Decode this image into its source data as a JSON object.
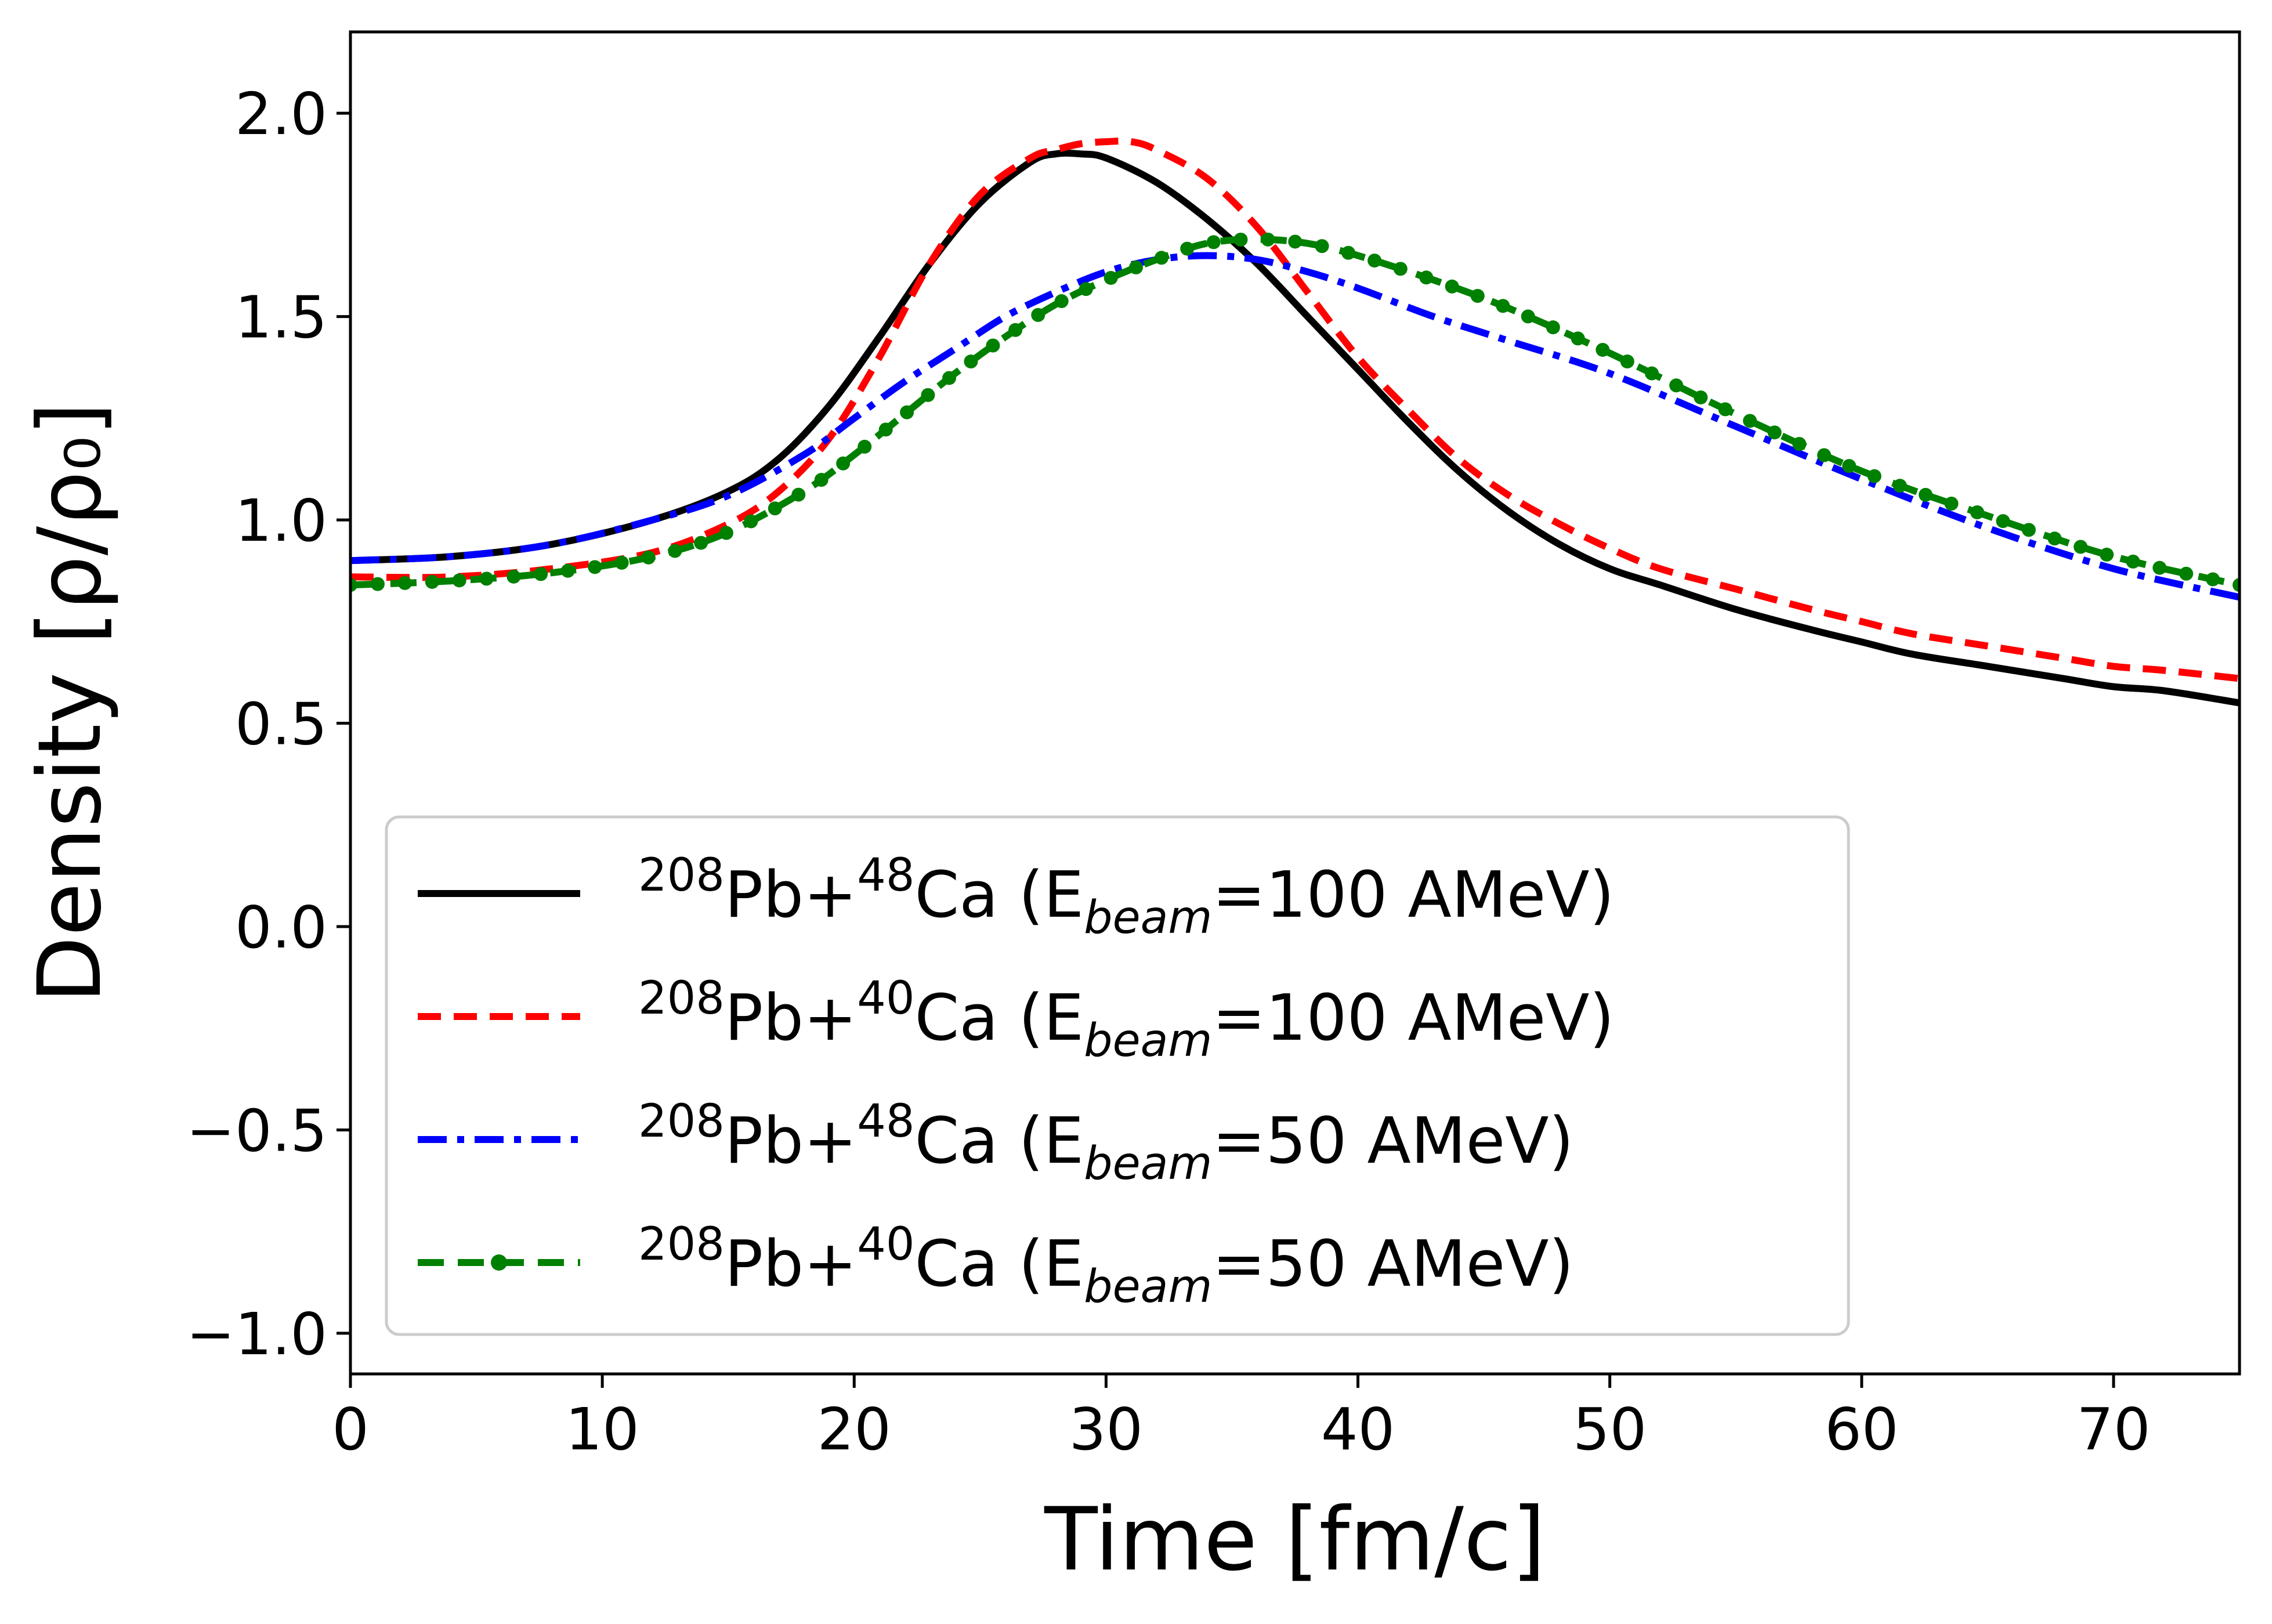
{
  "chart_data": {
    "type": "line",
    "xlabel": "Time [fm/c]",
    "ylabel": "Density [ρ/ρ₀]",
    "xlim": [
      0,
      75
    ],
    "ylim": [
      -1.1,
      2.2
    ],
    "xticks": [
      "0",
      "10",
      "20",
      "30",
      "40",
      "50",
      "60",
      "70"
    ],
    "yticks": [
      "−1.0",
      "−0.5",
      "0.0",
      "0.5",
      "1.0",
      "1.5",
      "2.0"
    ],
    "grid": false,
    "legend_position": "lower-left",
    "series": [
      {
        "legend": {
          "pre": "208",
          "mid": "Pb+",
          "sup2": "48",
          "post": "Ca (E",
          "sub": "beam",
          "end": "=100 AMeV)"
        },
        "color": "#000000",
        "style": "solid",
        "x": [
          0,
          4,
          8,
          12,
          15,
          17,
          19,
          21,
          23,
          25,
          27,
          28,
          29,
          30,
          32,
          34,
          36,
          38,
          40,
          42,
          44,
          46,
          48,
          50,
          52,
          55,
          58,
          60,
          62,
          65,
          68,
          70,
          72,
          75
        ],
        "y": [
          0.9,
          0.91,
          0.94,
          1.0,
          1.07,
          1.15,
          1.28,
          1.45,
          1.63,
          1.78,
          1.88,
          1.9,
          1.9,
          1.89,
          1.83,
          1.74,
          1.63,
          1.5,
          1.37,
          1.24,
          1.12,
          1.02,
          0.94,
          0.88,
          0.84,
          0.78,
          0.73,
          0.7,
          0.67,
          0.64,
          0.61,
          0.59,
          0.58,
          0.55
        ]
      },
      {
        "legend": {
          "pre": "208",
          "mid": "Pb+",
          "sup2": "40",
          "post": "Ca (E",
          "sub": "beam",
          "end": "=100 AMeV)"
        },
        "color": "#ff0000",
        "style": "dashed",
        "x": [
          0,
          4,
          8,
          12,
          15,
          17,
          19,
          21,
          23,
          25,
          27,
          28,
          29,
          30,
          31,
          32,
          34,
          36,
          38,
          40,
          42,
          44,
          46,
          48,
          50,
          52,
          55,
          58,
          60,
          62,
          65,
          68,
          70,
          72,
          75
        ],
        "y": [
          0.86,
          0.86,
          0.88,
          0.92,
          0.99,
          1.07,
          1.2,
          1.4,
          1.63,
          1.8,
          1.89,
          1.91,
          1.925,
          1.93,
          1.93,
          1.91,
          1.84,
          1.72,
          1.56,
          1.4,
          1.27,
          1.15,
          1.06,
          0.99,
          0.93,
          0.88,
          0.83,
          0.78,
          0.75,
          0.72,
          0.69,
          0.66,
          0.64,
          0.63,
          0.61
        ]
      },
      {
        "legend": {
          "pre": "208",
          "mid": "Pb+",
          "sup2": "48",
          "post": "Ca (E",
          "sub": "beam",
          "end": "=50 AMeV)"
        },
        "color": "#0000ff",
        "style": "dashdot",
        "x": [
          0,
          4,
          8,
          12,
          15,
          18,
          20,
          22,
          24,
          26,
          28,
          30,
          32,
          34,
          36,
          38,
          40,
          43,
          46,
          50,
          55,
          60,
          65,
          70,
          75
        ],
        "y": [
          0.9,
          0.91,
          0.94,
          1.0,
          1.06,
          1.16,
          1.25,
          1.34,
          1.42,
          1.5,
          1.56,
          1.61,
          1.64,
          1.65,
          1.64,
          1.61,
          1.57,
          1.5,
          1.44,
          1.36,
          1.23,
          1.1,
          0.98,
          0.88,
          0.81
        ]
      },
      {
        "legend": {
          "pre": "208",
          "mid": "Pb+",
          "sup2": "40",
          "post": "Ca (E",
          "sub": "beam",
          "end": "=50 AMeV)"
        },
        "color": "#008000",
        "style": "dash-dot-marker",
        "x": [
          0,
          4,
          8,
          12,
          15,
          18,
          20,
          22,
          24,
          26,
          28,
          30,
          32,
          34,
          36,
          38,
          40,
          43,
          46,
          50,
          55,
          60,
          65,
          70,
          75
        ],
        "y": [
          0.84,
          0.85,
          0.87,
          0.91,
          0.97,
          1.07,
          1.16,
          1.26,
          1.36,
          1.45,
          1.53,
          1.59,
          1.64,
          1.68,
          1.69,
          1.68,
          1.65,
          1.59,
          1.52,
          1.41,
          1.26,
          1.12,
          1.01,
          0.91,
          0.84
        ]
      }
    ]
  }
}
